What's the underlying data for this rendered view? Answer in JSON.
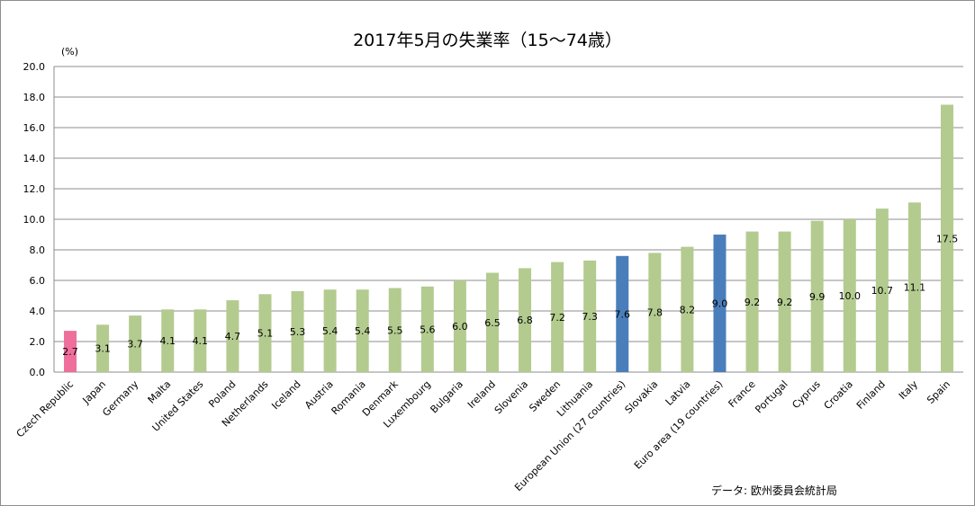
{
  "title": "2017年5月の失業率（15～74歳）",
  "unit_label": "(%)",
  "source": "データ: 欧州委員会統計局",
  "colors": {
    "default_bar": "#b3cb8f",
    "highlight_bar": "#ee6f9b",
    "aggregate_bar": "#4a7ebb",
    "gridline": "#8c8c8c"
  },
  "chart_data": {
    "type": "bar",
    "title": "2017年5月の失業率（15～74歳）",
    "xlabel": "",
    "ylabel": "(%)",
    "ylim": [
      0,
      20
    ],
    "yticks": [
      "0.0",
      "2.0",
      "4.0",
      "6.0",
      "8.0",
      "10.0",
      "12.0",
      "14.0",
      "16.0",
      "18.0",
      "20.0"
    ],
    "grid": true,
    "categories": [
      "Czech Republic",
      "Japan",
      "Germany",
      "Malta",
      "United States",
      "Poland",
      "Netherlands",
      "Iceland",
      "Austria",
      "Romania",
      "Denmark",
      "Luxembourg",
      "Bulgaria",
      "Ireland",
      "Slovenia",
      "Sweden",
      "Lithuania",
      "European Union (27 countries)",
      "Slovakia",
      "Latvia",
      "Euro area (19 countries)",
      "France",
      "Portugal",
      "Cyprus",
      "Croatia",
      "Finland",
      "Italy",
      "Spain"
    ],
    "values": [
      2.7,
      3.1,
      3.7,
      4.1,
      4.1,
      4.7,
      5.1,
      5.3,
      5.4,
      5.4,
      5.5,
      5.6,
      6.0,
      6.5,
      6.8,
      7.2,
      7.3,
      7.6,
      7.8,
      8.2,
      9.0,
      9.2,
      9.2,
      9.9,
      10.0,
      10.7,
      11.1,
      17.5
    ],
    "data_labels": [
      "2.7",
      "3.1",
      "3.7",
      "4.1",
      "4.1",
      "4.7",
      "5.1",
      "5.3",
      "5.4",
      "5.4",
      "5.5",
      "5.6",
      "6.0",
      "6.5",
      "6.8",
      "7.2",
      "7.3",
      "7.6",
      "7.8",
      "8.2",
      "9.0",
      "9.2",
      "9.2",
      "9.9",
      "10.0",
      "10.7",
      "11.1",
      "17.5"
    ],
    "bar_colors": [
      "highlight",
      "default",
      "default",
      "default",
      "default",
      "default",
      "default",
      "default",
      "default",
      "default",
      "default",
      "default",
      "default",
      "default",
      "default",
      "default",
      "default",
      "aggregate",
      "default",
      "default",
      "aggregate",
      "default",
      "default",
      "default",
      "default",
      "default",
      "default",
      "default"
    ]
  }
}
